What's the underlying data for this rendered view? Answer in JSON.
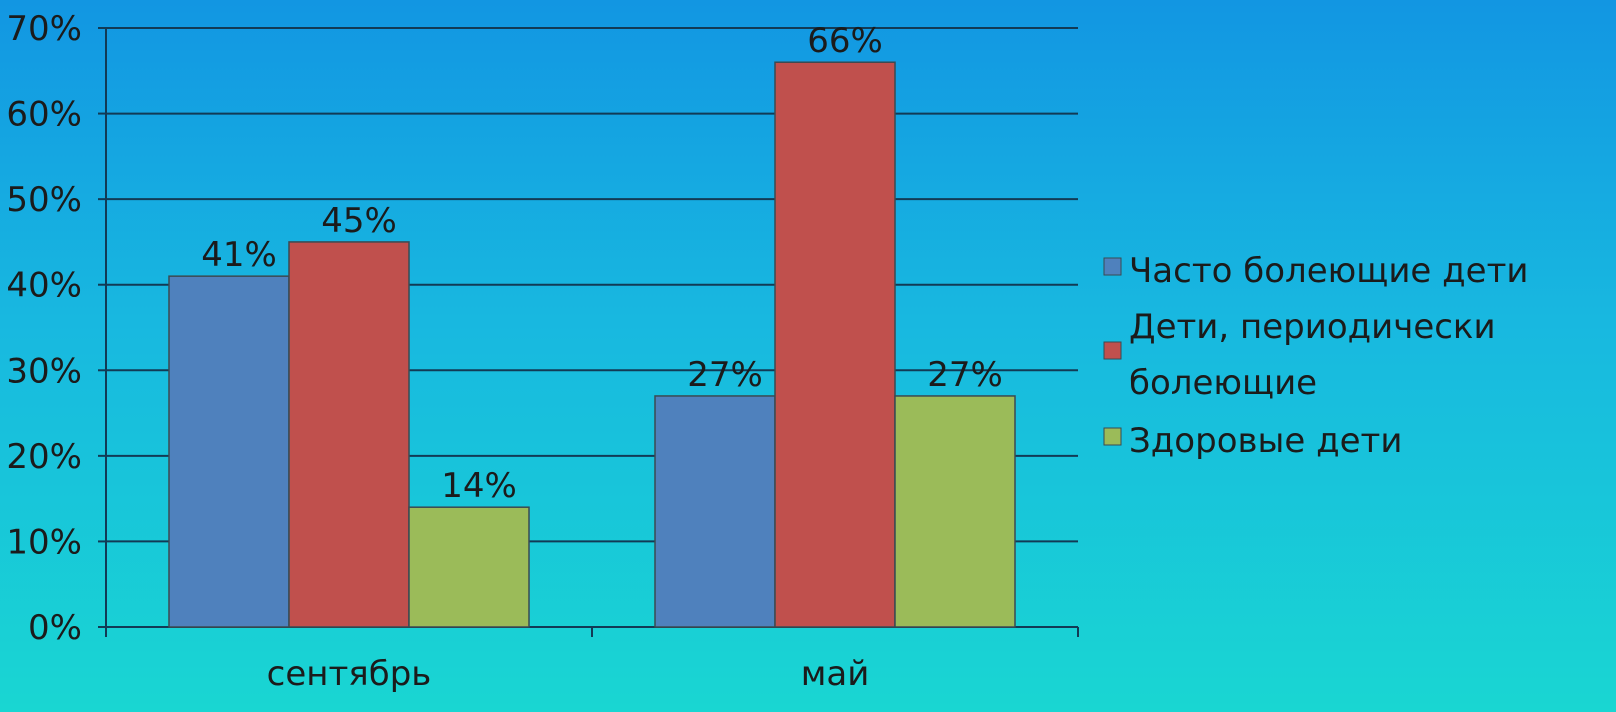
{
  "chart_data": {
    "type": "bar",
    "categories": [
      "сентябрь",
      "май"
    ],
    "series": [
      {
        "name": "Часто болеющие дети",
        "values": [
          41,
          27
        ],
        "color": "#4f81bd"
      },
      {
        "name": "Дети, периодически болеющие",
        "name_lines": [
          "Дети, периодически",
          "болеющие"
        ],
        "values": [
          45,
          66
        ],
        "color": "#c0504d"
      },
      {
        "name": "Здоровые дети",
        "values": [
          14,
          27
        ],
        "color": "#9bbb59"
      }
    ],
    "data_labels": [
      [
        "41%",
        "27%"
      ],
      [
        "45%",
        "66%"
      ],
      [
        "14%",
        "27%"
      ]
    ],
    "yticks": [
      "0%",
      "10%",
      "20%",
      "30%",
      "40%",
      "50%",
      "60%",
      "70%"
    ],
    "ylim": [
      0,
      70
    ],
    "grid": true,
    "legend_position": "right",
    "title": "",
    "xlabel": "",
    "ylabel": ""
  }
}
